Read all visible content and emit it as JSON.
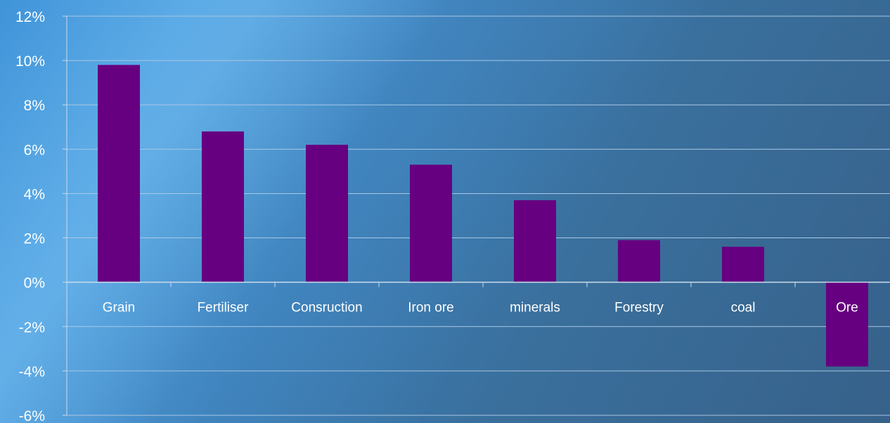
{
  "chart_data": {
    "type": "bar",
    "title": "",
    "xlabel": "",
    "ylabel": "",
    "categories": [
      "Grain",
      "Fertiliser",
      "Consruction",
      "Iron ore",
      "minerals",
      "Forestry",
      "coal",
      "Ore"
    ],
    "values": [
      9.8,
      6.8,
      6.2,
      5.3,
      3.7,
      1.9,
      1.6,
      -3.8
    ],
    "ylim": [
      -6,
      12
    ],
    "yticks": [
      12,
      10,
      8,
      6,
      4,
      2,
      0,
      -2,
      -4,
      -6
    ],
    "ytick_labels": [
      "12%",
      "10%",
      "8%",
      "6%",
      "4%",
      "2%",
      "0%",
      "-2%",
      "-4%",
      "-6%"
    ],
    "grid": true,
    "legend": "none",
    "colors": {
      "bar": "#660080",
      "gridline": "#a9c7e3",
      "axis": "#c9dbeb",
      "text": "#ffffff"
    }
  }
}
